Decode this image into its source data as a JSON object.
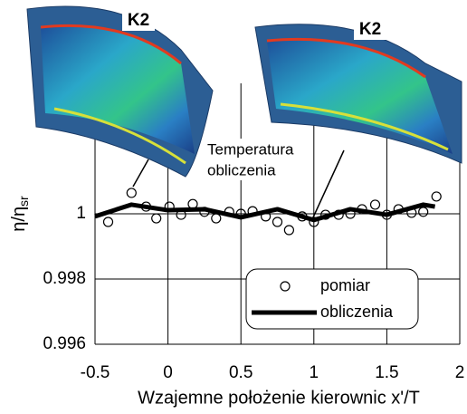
{
  "chart_data": {
    "type": "line",
    "xlabel": "Wzajemne położenie kierownic x'/T",
    "ylabel": {
      "main": "η/η",
      "sub": "sr"
    },
    "xlim": [
      -0.5,
      2
    ],
    "xticks": [
      -0.5,
      0,
      0.5,
      1,
      1.5,
      2
    ],
    "ylim": [
      0.996,
      1.004
    ],
    "yticks": [
      0.996,
      0.998,
      1
    ],
    "grid": true,
    "series": [
      {
        "name": "pomiar",
        "type": "scatter",
        "color": "#000000",
        "x": [
          -0.41,
          -0.25,
          -0.15,
          -0.08,
          0.01,
          0.09,
          0.17,
          0.25,
          0.33,
          0.42,
          0.5,
          0.58,
          0.67,
          0.75,
          0.83,
          0.92,
          1.0,
          1.08,
          1.17,
          1.25,
          1.33,
          1.42,
          1.5,
          1.58,
          1.67,
          1.75,
          1.84
        ],
        "values": [
          0.99975,
          1.00064,
          1.00022,
          0.99986,
          1.00022,
          0.99997,
          1.0003,
          1.00006,
          0.99986,
          1.00006,
          1.0,
          1.00008,
          0.99992,
          0.99975,
          0.9995,
          0.99992,
          0.99975,
          0.99997,
          0.99997,
          1.0,
          1.00014,
          1.00028,
          0.99997,
          1.00014,
          1.00003,
          1.00006,
          1.00053
        ]
      },
      {
        "name": "obliczenia",
        "type": "line",
        "color": "#000000",
        "x": [
          -0.5,
          -0.25,
          0,
          0.25,
          0.5,
          0.75,
          1.0,
          1.25,
          1.5,
          1.75,
          1.83
        ],
        "values": [
          0.99992,
          1.00028,
          1.00011,
          1.00014,
          0.99989,
          1.00014,
          0.99981,
          1.00014,
          0.99997,
          1.00028,
          1.00022
        ]
      }
    ],
    "legend": "lower-right",
    "annotation": [
      "Temperatura",
      "obliczenia"
    ],
    "image_labels": [
      "K2",
      "K2"
    ]
  }
}
